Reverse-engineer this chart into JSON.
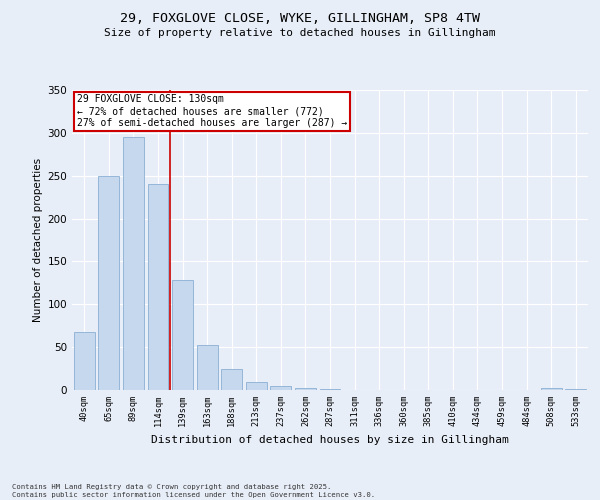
{
  "title_line1": "29, FOXGLOVE CLOSE, WYKE, GILLINGHAM, SP8 4TW",
  "title_line2": "Size of property relative to detached houses in Gillingham",
  "xlabel": "Distribution of detached houses by size in Gillingham",
  "ylabel": "Number of detached properties",
  "bins": [
    "40sqm",
    "65sqm",
    "89sqm",
    "114sqm",
    "139sqm",
    "163sqm",
    "188sqm",
    "213sqm",
    "237sqm",
    "262sqm",
    "287sqm",
    "311sqm",
    "336sqm",
    "360sqm",
    "385sqm",
    "410sqm",
    "434sqm",
    "459sqm",
    "484sqm",
    "508sqm",
    "533sqm"
  ],
  "values": [
    68,
    250,
    295,
    240,
    128,
    53,
    24,
    9,
    5,
    2,
    1,
    0,
    0,
    0,
    0,
    0,
    0,
    0,
    0,
    2,
    1
  ],
  "bar_color": "#c5d8ed",
  "bar_edge_color": "#8aafd4",
  "annotation_line1": "29 FOXGLOVE CLOSE: 130sqm",
  "annotation_line2": "← 72% of detached houses are smaller (772)",
  "annotation_line3": "27% of semi-detached houses are larger (287) →",
  "annotation_box_facecolor": "#ffffff",
  "annotation_box_edgecolor": "#cc0000",
  "vline_color": "#cc0000",
  "ylim": [
    0,
    350
  ],
  "yticks": [
    0,
    50,
    100,
    150,
    200,
    250,
    300,
    350
  ],
  "footer_line1": "Contains HM Land Registry data © Crown copyright and database right 2025.",
  "footer_line2": "Contains public sector information licensed under the Open Government Licence v3.0.",
  "bg_color": "#e8eef8",
  "plot_bg_color": "#e8eef8",
  "vline_x_index": 3.5
}
